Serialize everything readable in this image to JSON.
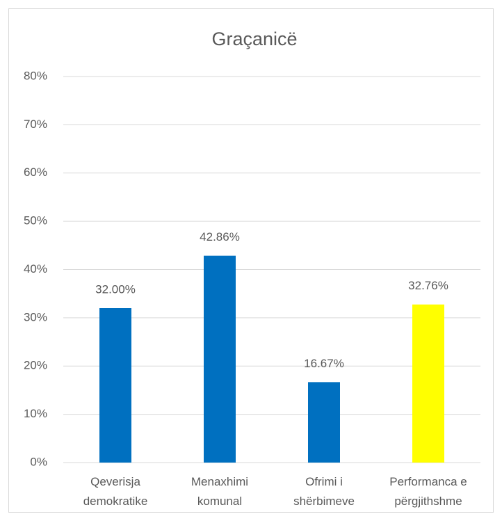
{
  "chart_data": {
    "type": "bar",
    "title": "Graçanicë",
    "categories": [
      "Qeverisja demokratike",
      "Menaxhimi komunal",
      "Ofrimi i shërbimeve",
      "Performanca e përgjithshme"
    ],
    "values": [
      32,
      42.86,
      16.67,
      32.76
    ],
    "value_labels": [
      "32.00%",
      "42.86%",
      "16.67%",
      "32.76%"
    ],
    "colors": [
      "#0070c0",
      "#0070c0",
      "#0070c0",
      "#ffff00"
    ],
    "ylim": [
      0,
      80
    ],
    "yticks": [
      {
        "value": 0,
        "label": "0%"
      },
      {
        "value": 10,
        "label": "10%"
      },
      {
        "value": 20,
        "label": "20%"
      },
      {
        "value": 30,
        "label": "30%"
      },
      {
        "value": 40,
        "label": "40%"
      },
      {
        "value": 50,
        "label": "50%"
      },
      {
        "value": 60,
        "label": "60%"
      },
      {
        "value": 70,
        "label": "70%"
      },
      {
        "value": 80,
        "label": "80%"
      }
    ],
    "grid": true
  }
}
